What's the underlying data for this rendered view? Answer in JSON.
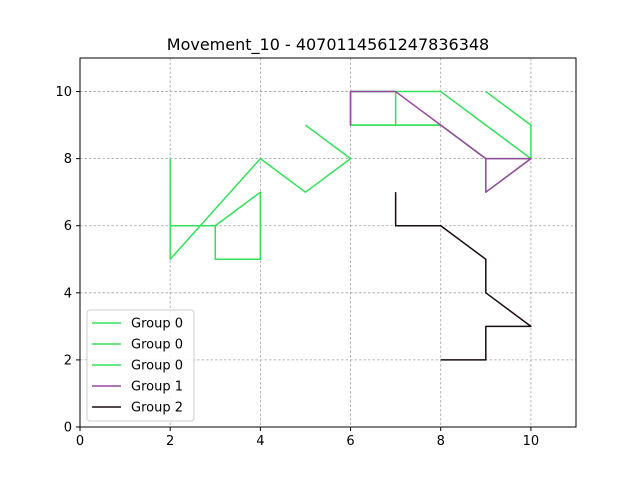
{
  "chart_data": {
    "type": "line",
    "title": "Movement_10 - 4070114561247836348",
    "xlabel": "",
    "ylabel": "",
    "xlim": [
      0,
      11
    ],
    "ylim": [
      0,
      11
    ],
    "xticks": [
      0,
      2,
      4,
      6,
      8,
      10
    ],
    "yticks": [
      0,
      2,
      4,
      6,
      8,
      10
    ],
    "grid": true,
    "legend_position": "bottom-left",
    "series": [
      {
        "name": "Group 0",
        "color": "#33e05a",
        "x": [
          2,
          2,
          3,
          3,
          4,
          4,
          3,
          2,
          2,
          4,
          5,
          6,
          5
        ],
        "y": [
          8,
          6,
          6,
          5,
          5,
          7,
          6,
          6,
          5,
          8,
          7,
          8,
          9
        ]
      },
      {
        "name": "Group 0",
        "color": "#33e05a",
        "x": [
          9,
          10,
          10,
          9,
          9,
          8,
          7,
          6,
          6,
          7,
          8,
          9,
          10
        ],
        "y": [
          10,
          9,
          8,
          7,
          8,
          9,
          9,
          9,
          10,
          10,
          10,
          9,
          8
        ]
      },
      {
        "name": "Group 0",
        "color": "#33e05a",
        "x": [
          7,
          7,
          6,
          6,
          7,
          8,
          9,
          10
        ],
        "y": [
          9,
          10,
          10,
          9,
          9,
          9,
          8,
          8
        ]
      },
      {
        "name": "Group 1",
        "color": "#9b47a3",
        "x": [
          6,
          6,
          7,
          8,
          9,
          9,
          10,
          9,
          8,
          7,
          6
        ],
        "y": [
          9,
          10,
          10,
          9,
          8,
          7,
          8,
          8,
          9,
          10,
          10
        ]
      },
      {
        "name": "Group 2",
        "color": "#1a0d12",
        "x": [
          7,
          7,
          8,
          9,
          9,
          10,
          9,
          9,
          8
        ],
        "y": [
          7,
          6,
          6,
          5,
          4,
          3,
          3,
          2,
          2
        ]
      }
    ]
  }
}
